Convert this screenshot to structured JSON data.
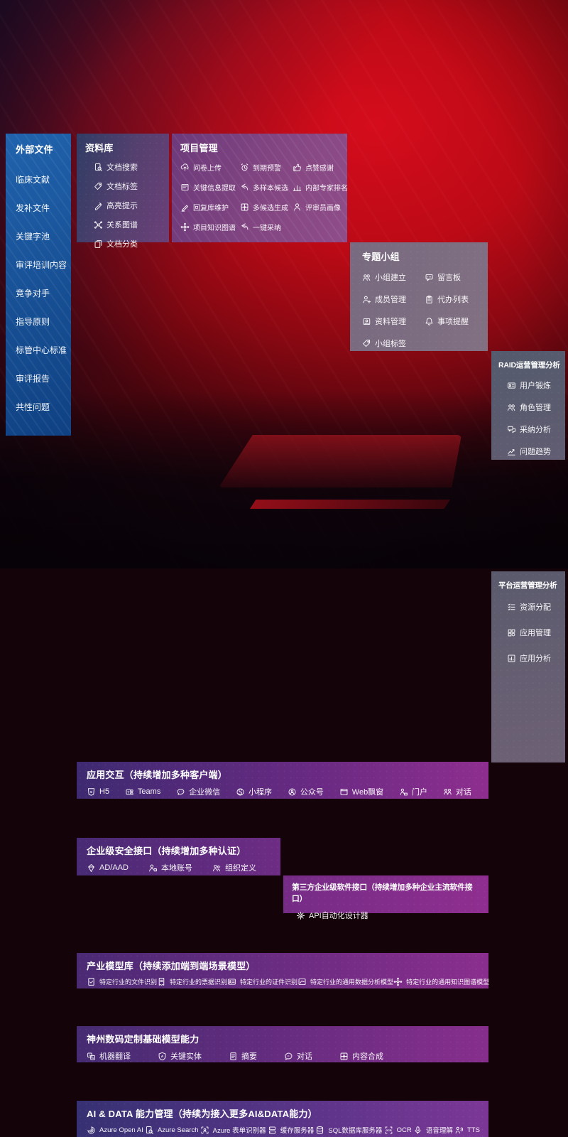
{
  "colors": {
    "bg_red": "#bb0a16",
    "sidebar_blue": "#1a5ca6",
    "band_purple_left": "#44287a",
    "band_purple_right": "#992f96",
    "slate_panel": "#5c5f70",
    "text": "#ffffff"
  },
  "left_sidebar": {
    "title": "外部文件",
    "items": [
      {
        "label": "临床文献"
      },
      {
        "label": "发补文件"
      },
      {
        "label": "关键字池"
      },
      {
        "label": "审评培训内容"
      },
      {
        "label": "竞争对手"
      },
      {
        "label": "指导原则"
      },
      {
        "label": "标管中心标准"
      },
      {
        "label": "审评报告"
      },
      {
        "label": "共性问题"
      }
    ]
  },
  "repository": {
    "title": "资料库",
    "items": [
      {
        "icon": "doc-search-icon",
        "label": "文档搜索"
      },
      {
        "icon": "tag-icon",
        "label": "文档标签"
      },
      {
        "icon": "highlight-pen-icon",
        "label": "高亮提示"
      },
      {
        "icon": "graph-network-icon",
        "label": "关系图谱"
      },
      {
        "icon": "doc-copy-icon",
        "label": "文档分类"
      }
    ]
  },
  "project": {
    "title": "项目管理",
    "items": [
      {
        "icon": "cloud-upload-icon",
        "label": "问卷上传"
      },
      {
        "icon": "alarm-icon",
        "label": "到期预警"
      },
      {
        "icon": "thumbs-up-icon",
        "label": "点赞感谢"
      },
      {
        "icon": "form-extract-icon",
        "label": "关键信息提取"
      },
      {
        "icon": "reply-arrow-icon",
        "label": "多样本候选"
      },
      {
        "icon": "ranking-icon",
        "label": "内部专家排名"
      },
      {
        "icon": "pen-edit-icon",
        "label": "回复库维护"
      },
      {
        "icon": "generate-grid-icon",
        "label": "多候选生成"
      },
      {
        "icon": "person-icon",
        "label": "评审员画像"
      },
      {
        "icon": "knowledge-graph-icon",
        "label": "项目知识图谱"
      },
      {
        "icon": "adopt-arrow-icon",
        "label": "一键采纳"
      }
    ]
  },
  "groups": {
    "title": "专题小组",
    "items": [
      {
        "icon": "people-icon",
        "label": "小组建立"
      },
      {
        "icon": "bbs-board-icon",
        "label": "留言板"
      },
      {
        "icon": "person-add-icon",
        "label": "成员管理"
      },
      {
        "icon": "clipboard-icon",
        "label": "代办列表"
      },
      {
        "icon": "archive-photo-icon",
        "label": "资料管理"
      },
      {
        "icon": "bell-icon",
        "label": "事项提醒"
      },
      {
        "icon": "tag-icon",
        "label": "小组标签"
      }
    ]
  },
  "raid": {
    "title": "RAID运营管理分析",
    "items": [
      {
        "icon": "id-card-icon",
        "label": "用户锻炼"
      },
      {
        "icon": "people-icon",
        "label": "角色管理"
      },
      {
        "icon": "chat-qa-icon",
        "label": "采纳分析"
      },
      {
        "icon": "trend-chart-icon",
        "label": "问题趋势"
      }
    ]
  },
  "platform": {
    "title": "平台运营管理分析",
    "items": [
      {
        "icon": "config-list-icon",
        "label": "资源分配"
      },
      {
        "icon": "app-grid-icon",
        "label": "应用管理"
      },
      {
        "icon": "app-chart-icon",
        "label": "应用分析"
      }
    ]
  },
  "bands": {
    "interaction": {
      "title": "应用交互（持续增加多种客户端）",
      "items": [
        {
          "icon": "h5-icon",
          "label": "H5"
        },
        {
          "icon": "teams-icon",
          "label": "Teams"
        },
        {
          "icon": "wechat-work-icon",
          "label": "企业微信"
        },
        {
          "icon": "miniprogram-icon",
          "label": "小程序"
        },
        {
          "icon": "official-account-icon",
          "label": "公众号"
        },
        {
          "icon": "web-window-icon",
          "label": "Web飘窗"
        },
        {
          "icon": "portal-icon",
          "label": "门户"
        },
        {
          "icon": "dialog-icon",
          "label": "对话"
        }
      ]
    },
    "security": {
      "title": "企业级安全接口（持续增加多种认证）",
      "items": [
        {
          "icon": "ad-diamond-icon",
          "label": "AD/AAD"
        },
        {
          "icon": "local-account-icon",
          "label": "本地账号"
        },
        {
          "icon": "org-people-icon",
          "label": "组织定义"
        }
      ]
    },
    "thirdparty": {
      "title": "第三方企业级软件接口（持续增加多种企业主流软件接口）",
      "items": [
        {
          "icon": "api-gear-icon",
          "label": "API自动化设计器"
        }
      ]
    },
    "industry": {
      "title": "产业模型库（持续添加端到端场景模型）",
      "items": [
        {
          "icon": "file-recog-icon",
          "label": "特定行业的文件识别"
        },
        {
          "icon": "receipt-icon",
          "label": "特定行业的票据识别"
        },
        {
          "icon": "id-card-icon",
          "label": "特定行业的证件识别"
        },
        {
          "icon": "data-model-icon",
          "label": "特定行业的通用数据分析模型"
        },
        {
          "icon": "knowledge-graph-icon",
          "label": "特定行业的通用知识图谱模型"
        }
      ]
    },
    "base_models": {
      "title": "神州数码定制基础模型能力",
      "items": [
        {
          "icon": "translate-icon",
          "label": "机器翻译"
        },
        {
          "icon": "entity-shield-icon",
          "label": "关键实体"
        },
        {
          "icon": "summary-doc-icon",
          "label": "摘要"
        },
        {
          "icon": "chat-bubble-icon",
          "label": "对话"
        },
        {
          "icon": "compose-grid-icon",
          "label": "内容合成"
        }
      ]
    },
    "ai_data": {
      "title": "AI & DATA 能力管理（持续为接入更多AI&DATA能力）",
      "items": [
        {
          "icon": "openai-icon",
          "label": "Azure Open AI"
        },
        {
          "icon": "doc-search-icon",
          "label": "Azure Search"
        },
        {
          "icon": "form-recognizer-icon",
          "label": "Azure 表单识别器"
        },
        {
          "icon": "cache-server-icon",
          "label": "缓存服务器"
        },
        {
          "icon": "sql-db-icon",
          "label": "SQL数据库服务器"
        },
        {
          "icon": "ocr-icon",
          "label": "OCR"
        },
        {
          "icon": "speech-icon",
          "label": "语音理解"
        },
        {
          "icon": "tts-icon",
          "label": "TTS"
        }
      ]
    }
  }
}
